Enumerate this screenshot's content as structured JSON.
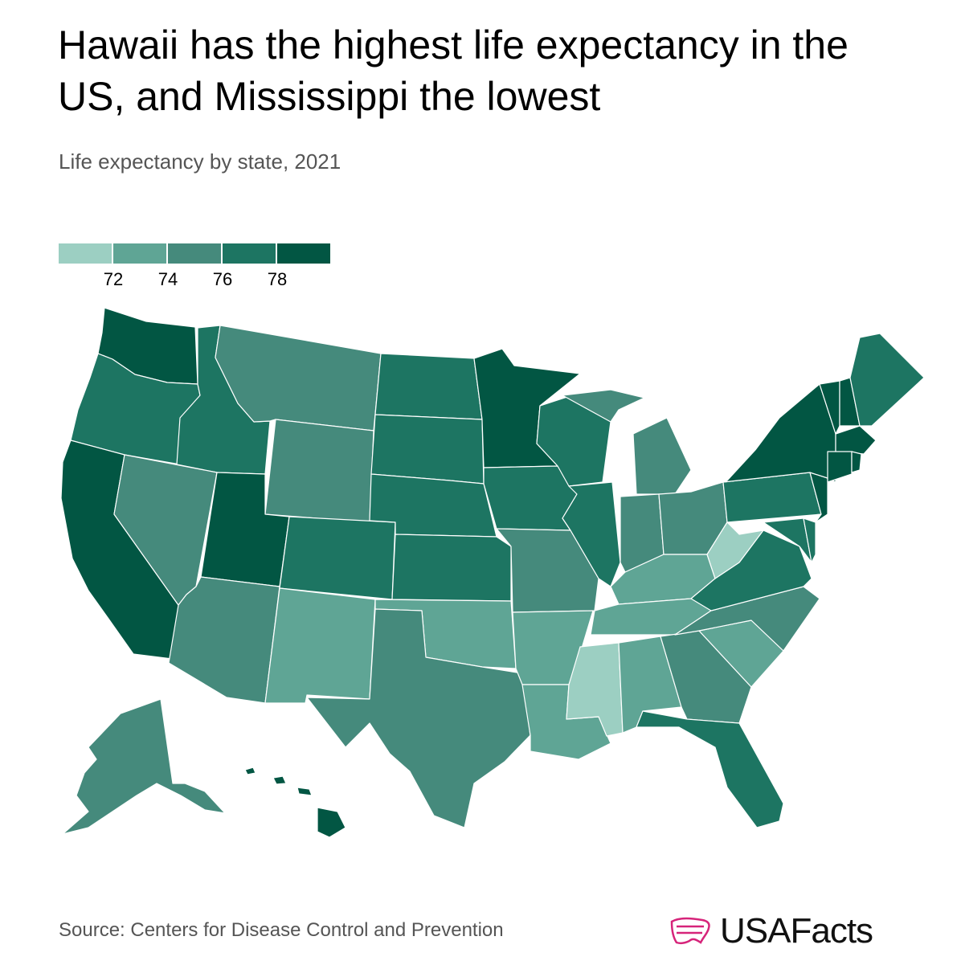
{
  "title": "Hawaii has the highest life expectancy in the US, and Mississippi the lowest",
  "subtitle": "Life expectancy by state, 2021",
  "legend": {
    "ticks": [
      "72",
      "74",
      "76",
      "78"
    ],
    "colors": [
      "#9ccfc2",
      "#5fa595",
      "#458a7c",
      "#1d7562",
      "#025643"
    ]
  },
  "source": "Source: Centers for Disease Control and Prevention",
  "brand": {
    "name": "USAFacts",
    "logo_color": "#d6247a"
  },
  "chart_data": {
    "type": "choropleth",
    "states": [
      {
        "state": "HI",
        "bin": 4
      },
      {
        "state": "WA",
        "bin": 4
      },
      {
        "state": "CA",
        "bin": 4
      },
      {
        "state": "UT",
        "bin": 4
      },
      {
        "state": "MN",
        "bin": 4
      },
      {
        "state": "NY",
        "bin": 4
      },
      {
        "state": "VT",
        "bin": 4
      },
      {
        "state": "NH",
        "bin": 4
      },
      {
        "state": "MA",
        "bin": 4
      },
      {
        "state": "CT",
        "bin": 4
      },
      {
        "state": "RI",
        "bin": 4
      },
      {
        "state": "NJ",
        "bin": 4
      },
      {
        "state": "OR",
        "bin": 3
      },
      {
        "state": "ID",
        "bin": 3
      },
      {
        "state": "CO",
        "bin": 3
      },
      {
        "state": "ND",
        "bin": 3
      },
      {
        "state": "SD",
        "bin": 3
      },
      {
        "state": "NE",
        "bin": 3
      },
      {
        "state": "KS",
        "bin": 3
      },
      {
        "state": "IA",
        "bin": 3
      },
      {
        "state": "WI",
        "bin": 3
      },
      {
        "state": "IL",
        "bin": 3
      },
      {
        "state": "PA",
        "bin": 3
      },
      {
        "state": "VA",
        "bin": 3
      },
      {
        "state": "MD",
        "bin": 3
      },
      {
        "state": "DE",
        "bin": 3
      },
      {
        "state": "ME",
        "bin": 3
      },
      {
        "state": "FL",
        "bin": 3
      },
      {
        "state": "MT",
        "bin": 2
      },
      {
        "state": "WY",
        "bin": 2
      },
      {
        "state": "NV",
        "bin": 2
      },
      {
        "state": "AZ",
        "bin": 2
      },
      {
        "state": "TX",
        "bin": 2
      },
      {
        "state": "MO",
        "bin": 2
      },
      {
        "state": "MI",
        "bin": 2
      },
      {
        "state": "IN",
        "bin": 2
      },
      {
        "state": "OH",
        "bin": 2
      },
      {
        "state": "NC",
        "bin": 2
      },
      {
        "state": "GA",
        "bin": 2
      },
      {
        "state": "AK",
        "bin": 2
      },
      {
        "state": "NM",
        "bin": 1
      },
      {
        "state": "OK",
        "bin": 1
      },
      {
        "state": "AR",
        "bin": 1
      },
      {
        "state": "LA",
        "bin": 1
      },
      {
        "state": "AL",
        "bin": 1
      },
      {
        "state": "TN",
        "bin": 1
      },
      {
        "state": "KY",
        "bin": 1
      },
      {
        "state": "SC",
        "bin": 1
      },
      {
        "state": "WV",
        "bin": 0
      },
      {
        "state": "MS",
        "bin": 0
      }
    ]
  }
}
